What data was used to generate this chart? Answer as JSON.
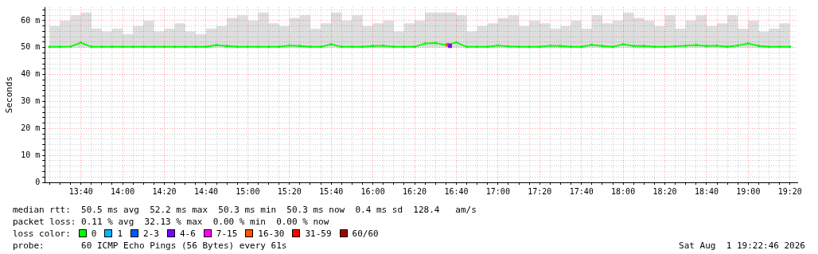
{
  "chart_data": {
    "type": "line",
    "ylabel": "Seconds",
    "x": [
      13.4167,
      13.5,
      13.5833,
      13.6667,
      13.75,
      13.8333,
      13.9167,
      14,
      14.0833,
      14.1667,
      14.25,
      14.3333,
      14.4167,
      14.5,
      14.5833,
      14.6667,
      14.75,
      14.8333,
      14.9167,
      15,
      15.0833,
      15.1667,
      15.25,
      15.3333,
      15.4167,
      15.5,
      15.5833,
      15.6667,
      15.75,
      15.8333,
      15.9167,
      16,
      16.0833,
      16.1667,
      16.25,
      16.3333,
      16.4167,
      16.5,
      16.5833,
      16.6667,
      16.75,
      16.8333,
      16.9167,
      17,
      17.0833,
      17.1667,
      17.25,
      17.3333,
      17.4167,
      17.5,
      17.5833,
      17.6667,
      17.75,
      17.8333,
      17.9167,
      18,
      18.0833,
      18.1667,
      18.25,
      18.3333,
      18.4167,
      18.5,
      18.5833,
      18.6667,
      18.75,
      18.8333,
      18.9167,
      19,
      19.0833,
      19.1667,
      19.25,
      19.3333
    ],
    "series": [
      {
        "name": "0",
        "color": "#00ff00",
        "values": [
          50.3,
          50.3,
          50.4,
          51.8,
          50.3,
          50.3,
          50.3,
          50.3,
          50.3,
          50.3,
          50.3,
          50.3,
          50.3,
          50.3,
          50.3,
          50.3,
          50.9,
          50.6,
          50.3,
          50.3,
          50.3,
          50.3,
          50.3,
          50.8,
          50.6,
          50.3,
          50.3,
          51.2,
          50.3,
          50.3,
          50.3,
          50.6,
          50.7,
          50.3,
          50.3,
          50.3,
          51.5,
          51.7,
          51.0,
          51.9,
          50.3,
          50.3,
          50.3,
          50.8,
          50.5,
          50.3,
          50.3,
          50.3,
          50.7,
          50.6,
          50.3,
          50.3,
          51.0,
          50.6,
          50.3,
          51.2,
          50.6,
          50.6,
          50.3,
          50.3,
          50.5,
          50.7,
          50.9,
          50.6,
          50.7,
          50.3,
          50.8,
          51.5,
          50.6,
          50.3,
          50.3,
          50.3
        ],
        "lower": [
          50,
          50,
          50,
          50,
          50,
          50,
          50,
          50,
          50,
          50,
          50,
          50,
          50,
          50,
          50,
          50,
          50,
          50,
          50,
          50,
          50,
          50,
          50,
          50,
          50,
          50,
          50,
          50,
          50,
          50,
          50,
          50,
          50,
          50,
          50,
          50,
          50,
          50,
          50,
          50,
          50,
          50,
          50,
          50,
          50,
          50,
          50,
          50,
          50,
          50,
          50,
          50,
          50,
          50,
          50,
          50,
          50,
          50,
          50,
          50,
          50,
          50,
          50,
          50,
          50,
          50,
          50,
          50,
          50,
          50,
          50,
          50
        ],
        "upper": [
          58,
          60,
          62,
          63,
          57,
          56,
          57,
          55,
          58,
          60,
          56,
          57,
          59,
          56,
          55,
          57,
          58,
          61,
          62,
          60,
          63,
          59,
          58,
          61,
          62,
          57,
          59,
          63,
          60,
          62,
          58,
          59,
          60,
          56,
          59,
          60,
          63,
          63,
          63,
          62,
          56,
          58,
          59,
          61,
          62,
          58,
          60,
          59,
          57,
          58,
          60,
          57,
          62,
          59,
          60,
          63,
          61,
          60,
          58,
          62,
          57,
          60,
          62,
          58,
          59,
          62,
          57,
          60,
          56,
          57,
          59,
          57
        ]
      },
      {
        "name": "1",
        "color": "#00b8ff",
        "values": [
          null,
          null,
          null,
          null,
          null,
          null,
          null,
          null,
          null,
          null,
          null,
          null,
          null,
          null,
          null,
          null,
          null,
          null,
          null,
          null,
          null,
          null,
          null,
          null,
          null,
          null,
          null,
          null,
          null,
          null,
          null,
          null,
          null,
          null,
          null,
          null,
          null,
          null,
          null,
          null,
          null,
          null,
          null,
          null,
          null,
          null,
          null,
          null,
          null,
          null,
          null,
          null,
          null,
          null,
          null,
          null,
          null,
          null,
          null,
          null,
          null,
          null,
          null,
          null,
          null,
          null,
          null,
          null,
          null,
          null,
          null,
          null
        ]
      },
      {
        "name": "2-3",
        "color": "#0059ff",
        "values": [
          null,
          null,
          null,
          null,
          null,
          null,
          null,
          null,
          null,
          null,
          null,
          null,
          null,
          null,
          null,
          null,
          null,
          null,
          null,
          null,
          null,
          null,
          null,
          null,
          null,
          null,
          null,
          null,
          null,
          null,
          null,
          null,
          null,
          null,
          null,
          null,
          null,
          null,
          null,
          null,
          null,
          null,
          null,
          null,
          null,
          null,
          null,
          null,
          null,
          null,
          null,
          null,
          null,
          null,
          null,
          null,
          null,
          null,
          null,
          null,
          null,
          null,
          null,
          null,
          null,
          null,
          null,
          null,
          null,
          null,
          null,
          null
        ]
      },
      {
        "name": "4-6",
        "color": "#7e00ff",
        "x": [
          16.6167
        ],
        "values": [
          50.6
        ]
      },
      {
        "name": "7-15",
        "color": "#ff00ff",
        "values": [
          null,
          null,
          null,
          null,
          null,
          null,
          null,
          null,
          null,
          null,
          null,
          null,
          null,
          null,
          null,
          null,
          null,
          null,
          null,
          null,
          null,
          null,
          null,
          null,
          null,
          null,
          null,
          null,
          null,
          null,
          null,
          null,
          null,
          null,
          null,
          null,
          null,
          null,
          null,
          null,
          null,
          null,
          null,
          null,
          null,
          null,
          null,
          null,
          null,
          null,
          null,
          null,
          null,
          null,
          null,
          null,
          null,
          null,
          null,
          null,
          null,
          null,
          null,
          null,
          null,
          null,
          null,
          null,
          null,
          null,
          null,
          null
        ]
      },
      {
        "name": "16-30",
        "color": "#ff5500",
        "x": [
          16.6
        ],
        "values": [
          51.0
        ]
      },
      {
        "name": "31-59",
        "color": "#ff0000",
        "values": [
          null,
          null,
          null,
          null,
          null,
          null,
          null,
          null,
          null,
          null,
          null,
          null,
          null,
          null,
          null,
          null,
          null,
          null,
          null,
          null,
          null,
          null,
          null,
          null,
          null,
          null,
          null,
          null,
          null,
          null,
          null,
          null,
          null,
          null,
          null,
          null,
          null,
          null,
          null,
          null,
          null,
          null,
          null,
          null,
          null,
          null,
          null,
          null,
          null,
          null,
          null,
          null,
          null,
          null,
          null,
          null,
          null,
          null,
          null,
          null,
          null,
          null,
          null,
          null,
          null,
          null,
          null,
          null,
          null,
          null,
          null,
          null
        ]
      },
      {
        "name": "60/60",
        "color": "#a10000",
        "values": [
          null,
          null,
          null,
          null,
          null,
          null,
          null,
          null,
          null,
          null,
          null,
          null,
          null,
          null,
          null,
          null,
          null,
          null,
          null,
          null,
          null,
          null,
          null,
          null,
          null,
          null,
          null,
          null,
          null,
          null,
          null,
          null,
          null,
          null,
          null,
          null,
          null,
          null,
          null,
          null,
          null,
          null,
          null,
          null,
          null,
          null,
          null,
          null,
          null,
          null,
          null,
          null,
          null,
          null,
          null,
          null,
          null,
          null,
          null,
          null,
          null,
          null,
          null,
          null,
          null,
          null,
          null,
          null,
          null,
          null,
          null,
          null
        ]
      }
    ],
    "xlim": [
      13.378,
      19.392
    ],
    "ylim": [
      0,
      65
    ],
    "xticks": [
      {
        "value": 13.4167,
        "label": null
      },
      {
        "value": 13.5,
        "label": null
      },
      {
        "value": 13.5833,
        "label": null
      },
      {
        "value": 13.6667,
        "label": "13:40"
      },
      {
        "value": 13.75,
        "label": null
      },
      {
        "value": 13.8333,
        "label": null
      },
      {
        "value": 13.9167,
        "label": null
      },
      {
        "value": 14,
        "label": "14:00"
      },
      {
        "value": 14.0833,
        "label": null
      },
      {
        "value": 14.1667,
        "label": null
      },
      {
        "value": 14.25,
        "label": null
      },
      {
        "value": 14.3333,
        "label": "14:20"
      },
      {
        "value": 14.4167,
        "label": null
      },
      {
        "value": 14.5,
        "label": null
      },
      {
        "value": 14.5833,
        "label": null
      },
      {
        "value": 14.6667,
        "label": "14:40"
      },
      {
        "value": 14.75,
        "label": null
      },
      {
        "value": 14.8333,
        "label": null
      },
      {
        "value": 14.9167,
        "label": null
      },
      {
        "value": 15,
        "label": "15:00"
      },
      {
        "value": 15.0833,
        "label": null
      },
      {
        "value": 15.1667,
        "label": null
      },
      {
        "value": 15.25,
        "label": null
      },
      {
        "value": 15.3333,
        "label": "15:20"
      },
      {
        "value": 15.4167,
        "label": null
      },
      {
        "value": 15.5,
        "label": null
      },
      {
        "value": 15.5833,
        "label": null
      },
      {
        "value": 15.6667,
        "label": "15:40"
      },
      {
        "value": 15.75,
        "label": null
      },
      {
        "value": 15.8333,
        "label": null
      },
      {
        "value": 15.9167,
        "label": null
      },
      {
        "value": 16,
        "label": "16:00"
      },
      {
        "value": 16.0833,
        "label": null
      },
      {
        "value": 16.1667,
        "label": null
      },
      {
        "value": 16.25,
        "label": null
      },
      {
        "value": 16.3333,
        "label": "16:20"
      },
      {
        "value": 16.4167,
        "label": null
      },
      {
        "value": 16.5,
        "label": null
      },
      {
        "value": 16.5833,
        "label": null
      },
      {
        "value": 16.6667,
        "label": "16:40"
      },
      {
        "value": 16.75,
        "label": null
      },
      {
        "value": 16.8333,
        "label": null
      },
      {
        "value": 16.9167,
        "label": null
      },
      {
        "value": 17,
        "label": "17:00"
      },
      {
        "value": 17.0833,
        "label": null
      },
      {
        "value": 17.1667,
        "label": null
      },
      {
        "value": 17.25,
        "label": null
      },
      {
        "value": 17.3333,
        "label": "17:20"
      },
      {
        "value": 17.4167,
        "label": null
      },
      {
        "value": 17.5,
        "label": null
      },
      {
        "value": 17.5833,
        "label": null
      },
      {
        "value": 17.6667,
        "label": "17:40"
      },
      {
        "value": 17.75,
        "label": null
      },
      {
        "value": 17.8333,
        "label": null
      },
      {
        "value": 17.9167,
        "label": null
      },
      {
        "value": 18,
        "label": "18:00"
      },
      {
        "value": 18.0833,
        "label": null
      },
      {
        "value": 18.1667,
        "label": null
      },
      {
        "value": 18.25,
        "label": null
      },
      {
        "value": 18.3333,
        "label": "18:20"
      },
      {
        "value": 18.4167,
        "label": null
      },
      {
        "value": 18.5,
        "label": null
      },
      {
        "value": 18.5833,
        "label": null
      },
      {
        "value": 18.6667,
        "label": "18:40"
      },
      {
        "value": 18.75,
        "label": null
      },
      {
        "value": 18.8333,
        "label": null
      },
      {
        "value": 18.9167,
        "label": null
      },
      {
        "value": 19,
        "label": "19:00"
      },
      {
        "value": 19.0833,
        "label": null
      },
      {
        "value": 19.1667,
        "label": null
      },
      {
        "value": 19.25,
        "label": null
      },
      {
        "value": 19.3333,
        "label": "19:20"
      }
    ],
    "yticks": [
      {
        "value": 0,
        "label": "0"
      },
      {
        "value": 2,
        "label": null
      },
      {
        "value": 4,
        "label": null
      },
      {
        "value": 6,
        "label": null
      },
      {
        "value": 8,
        "label": null
      },
      {
        "value": 10,
        "label": "10 m"
      },
      {
        "value": 12,
        "label": null
      },
      {
        "value": 14,
        "label": null
      },
      {
        "value": 16,
        "label": null
      },
      {
        "value": 18,
        "label": null
      },
      {
        "value": 20,
        "label": "20 m"
      },
      {
        "value": 22,
        "label": null
      },
      {
        "value": 24,
        "label": null
      },
      {
        "value": 26,
        "label": null
      },
      {
        "value": 28,
        "label": null
      },
      {
        "value": 30,
        "label": "30 m"
      },
      {
        "value": 32,
        "label": null
      },
      {
        "value": 34,
        "label": null
      },
      {
        "value": 36,
        "label": null
      },
      {
        "value": 38,
        "label": null
      },
      {
        "value": 40,
        "label": "40 m"
      },
      {
        "value": 42,
        "label": null
      },
      {
        "value": 44,
        "label": null
      },
      {
        "value": 46,
        "label": null
      },
      {
        "value": 48,
        "label": null
      },
      {
        "value": 50,
        "label": "50 m"
      },
      {
        "value": 52,
        "label": null
      },
      {
        "value": 54,
        "label": null
      },
      {
        "value": 56,
        "label": null
      },
      {
        "value": 58,
        "label": null
      },
      {
        "value": 60,
        "label": "60 m"
      },
      {
        "value": 62,
        "label": null
      },
      {
        "value": 64,
        "label": null
      }
    ],
    "grid": true,
    "legend": "bottom",
    "marker": "square",
    "line_style": "solid",
    "annotations": [
      "median rtt:  50.5 ms avg  52.2 ms max  50.3 ms min  50.3 ms now  0.4 ms sd  128.4   am/s",
      "packet loss: 0.11 % avg  32.13 % max  0.00 % min  0.00 % now",
      "loss color:",
      "probe:       60 ICMP Echo Pings (56 Bytes) every 61s",
      "Sat Aug  1 19:22:46 2026"
    ]
  }
}
